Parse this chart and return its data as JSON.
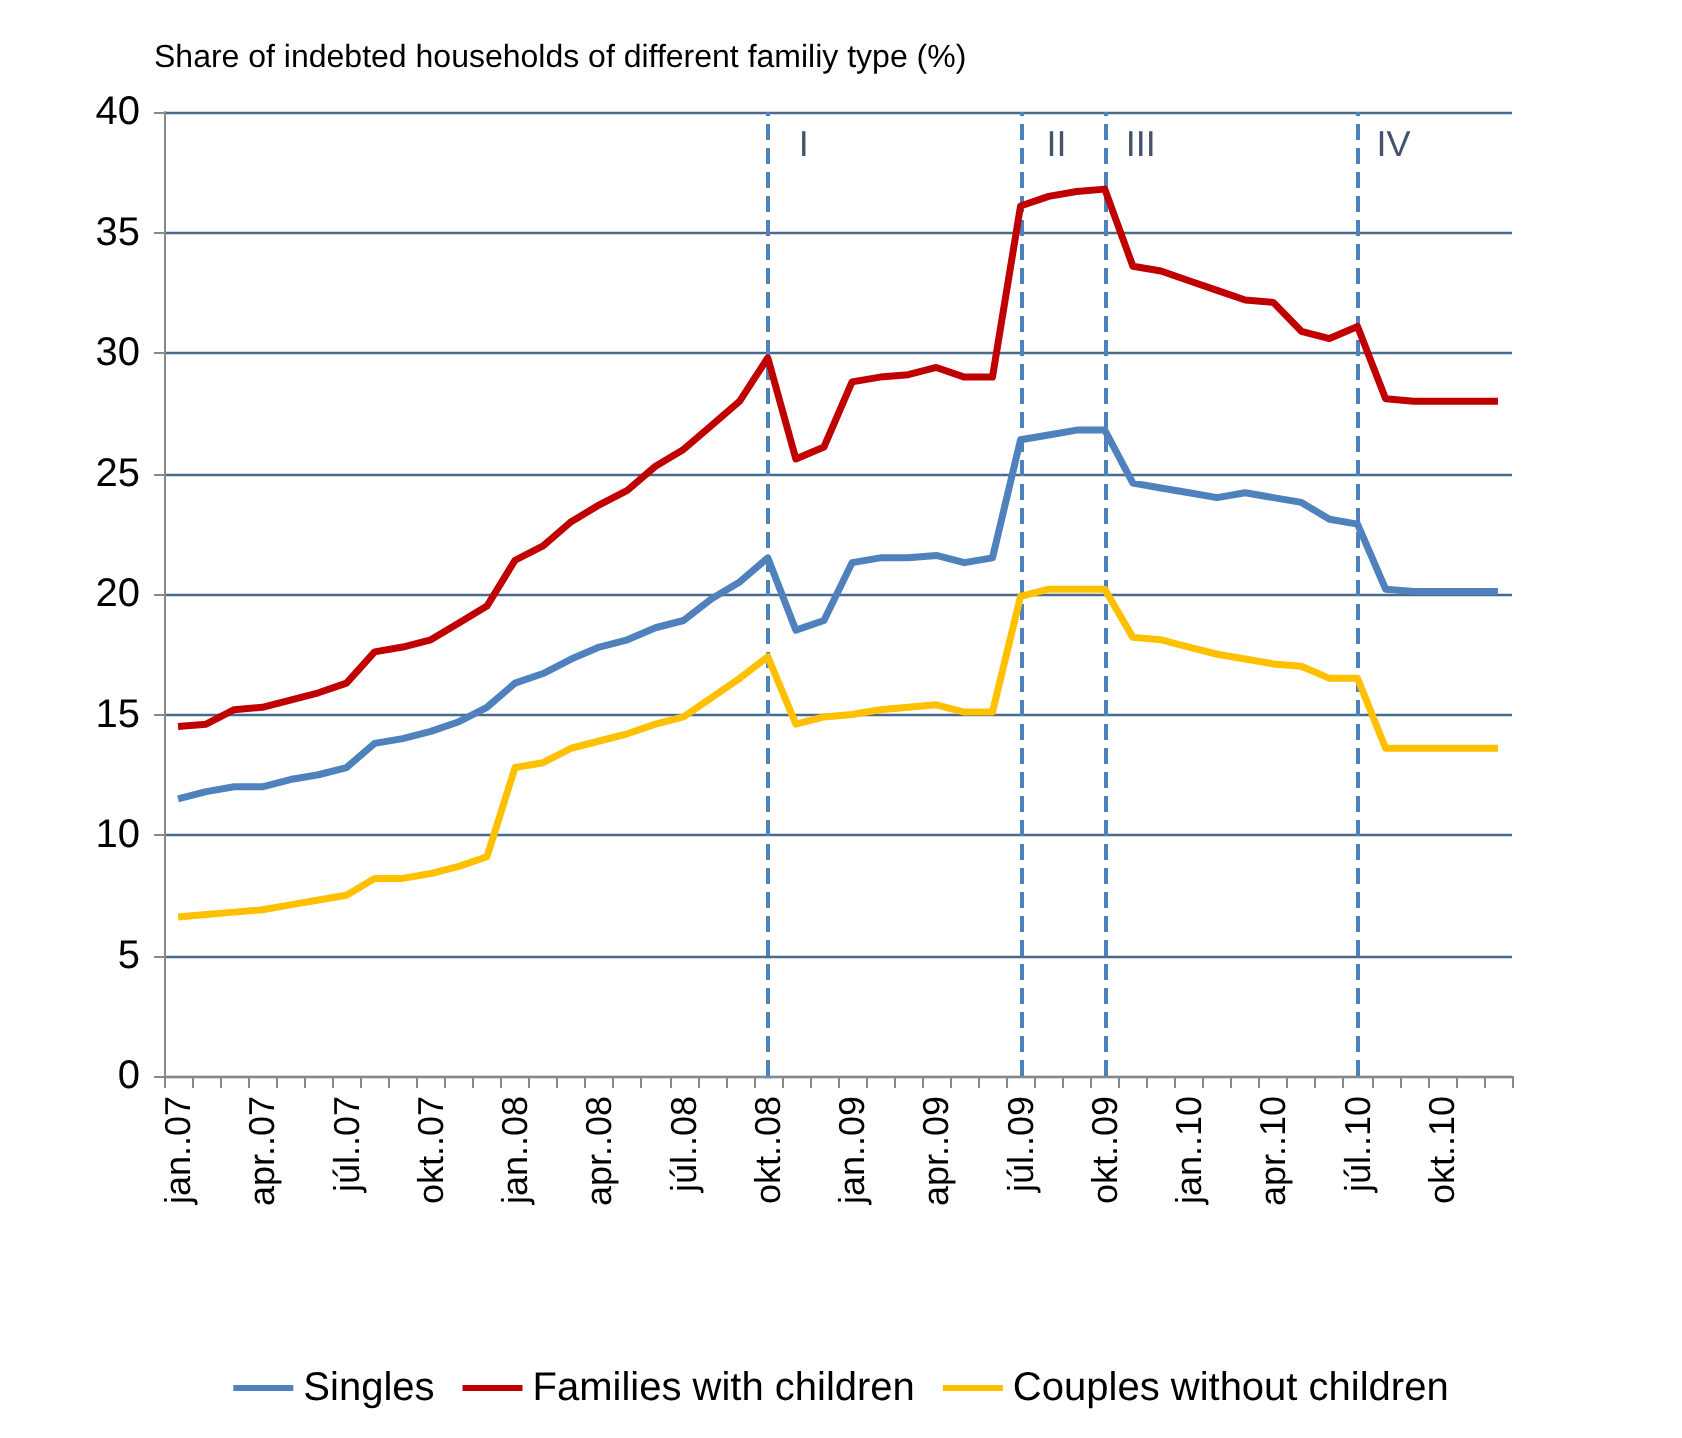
{
  "chart_data": {
    "type": "line",
    "title": "Share of indebted households of different familiy type (%)",
    "categories": [
      "jan..07",
      null,
      null,
      "apr..07",
      null,
      null,
      "júl..07",
      null,
      null,
      "okt..07",
      null,
      null,
      "jan..08",
      null,
      null,
      "apr..08",
      null,
      null,
      "júl..08",
      null,
      null,
      "okt..08",
      null,
      null,
      "jan..09",
      null,
      null,
      "apr..09",
      null,
      null,
      "júl..09",
      null,
      null,
      "okt..09",
      null,
      null,
      "jan..10",
      null,
      null,
      "apr..10",
      null,
      null,
      "júl..10",
      null,
      null,
      "okt..10",
      null,
      null
    ],
    "series": [
      {
        "name": "Singles",
        "color": "#4f81bd",
        "values": [
          11.5,
          11.8,
          12.0,
          12.0,
          12.3,
          12.5,
          12.8,
          13.8,
          14.0,
          14.3,
          14.7,
          15.3,
          16.3,
          16.7,
          17.3,
          17.8,
          18.1,
          18.6,
          18.9,
          19.8,
          20.5,
          21.5,
          18.5,
          18.9,
          21.3,
          21.5,
          21.5,
          21.6,
          21.3,
          21.5,
          26.4,
          26.6,
          26.8,
          26.8,
          24.6,
          24.4,
          24.2,
          24.0,
          24.2,
          24.0,
          23.8,
          23.1,
          22.9,
          20.2,
          20.1,
          20.1,
          20.1,
          20.1
        ]
      },
      {
        "name": "Families with children",
        "color": "#c00000",
        "values": [
          14.5,
          14.6,
          15.2,
          15.3,
          15.6,
          15.9,
          16.3,
          17.6,
          17.8,
          18.1,
          18.8,
          19.5,
          21.4,
          22.0,
          23.0,
          23.7,
          24.3,
          25.3,
          26.0,
          27.0,
          28.0,
          29.8,
          25.6,
          26.1,
          28.8,
          29.0,
          29.1,
          29.4,
          29.0,
          29.0,
          36.1,
          36.5,
          36.7,
          36.8,
          33.6,
          33.4,
          33.0,
          32.6,
          32.2,
          32.1,
          30.9,
          30.6,
          31.1,
          28.1,
          28.0,
          28.0,
          28.0,
          28.0
        ]
      },
      {
        "name": "Couples without children",
        "color": "#ffc000",
        "values": [
          6.6,
          6.7,
          6.8,
          6.9,
          7.1,
          7.3,
          7.5,
          8.2,
          8.2,
          8.4,
          8.7,
          9.1,
          12.8,
          13.0,
          13.6,
          13.9,
          14.2,
          14.6,
          14.9,
          15.7,
          16.5,
          17.4,
          14.6,
          14.9,
          15.0,
          15.2,
          15.3,
          15.4,
          15.1,
          15.1,
          19.9,
          20.2,
          20.2,
          20.2,
          18.2,
          18.1,
          17.8,
          17.5,
          17.3,
          17.1,
          17.0,
          16.5,
          16.5,
          13.6,
          13.6,
          13.6,
          13.6,
          13.6
        ]
      }
    ],
    "ylim": [
      0,
      40
    ],
    "yticks": [
      0,
      5,
      10,
      15,
      20,
      25,
      30,
      35,
      40
    ],
    "grid": "y",
    "legend": "bottom",
    "marker": "none",
    "line_style": "solid",
    "ref_lines": [
      {
        "axis": "x",
        "value": "okt..08",
        "label": "I",
        "color": "#4f81bd",
        "line_style": "dashed"
      },
      {
        "axis": "x",
        "value": "júl..09",
        "label": "II",
        "color": "#4f81bd",
        "line_style": "dashed"
      },
      {
        "axis": "x",
        "value": "okt..09",
        "label": "III",
        "color": "#4f81bd",
        "line_style": "dashed"
      },
      {
        "axis": "x",
        "value": "júl..10",
        "label": "IV",
        "color": "#4f81bd",
        "line_style": "dashed"
      }
    ]
  }
}
